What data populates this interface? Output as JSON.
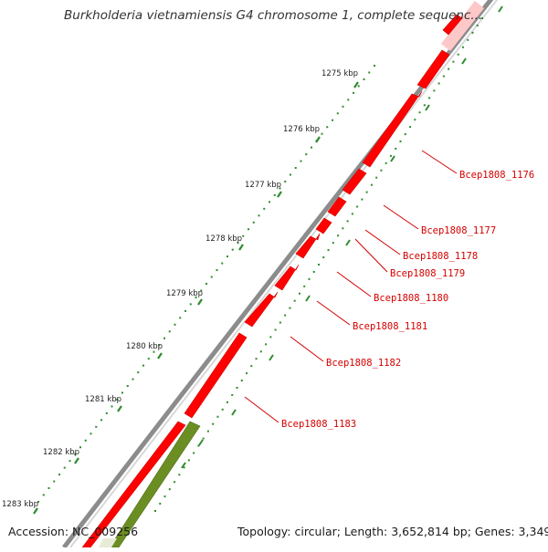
{
  "title": "Burkholderia vietnamiensis G4 chromosome 1, complete sequenc...",
  "footer": {
    "accession": "Accession: NC_009256",
    "summary": "Topology: circular; Length: 3,652,814 bp; Genes: 3,349"
  },
  "colors": {
    "forward_gene": "#ff0000",
    "forward_gene_highlight": "#ff6a6a",
    "other_feature": "#6b8e23",
    "backbone": "#8c8c8c",
    "tick_mark": "#2e8b2e",
    "label": "#d40000"
  },
  "scale_ticks": [
    "1275 kbp",
    "1276 kbp",
    "1277 kbp",
    "1278 kbp",
    "1279 kbp",
    "1280 kbp",
    "1281 kbp",
    "1282 kbp",
    "1283 kbp"
  ],
  "gene_labels": [
    "Bcep1808_1176",
    "Bcep1808_1177",
    "Bcep1808_1178",
    "Bcep1808_1179",
    "Bcep1808_1180",
    "Bcep1808_1181",
    "Bcep1808_1182",
    "Bcep1808_1183"
  ]
}
